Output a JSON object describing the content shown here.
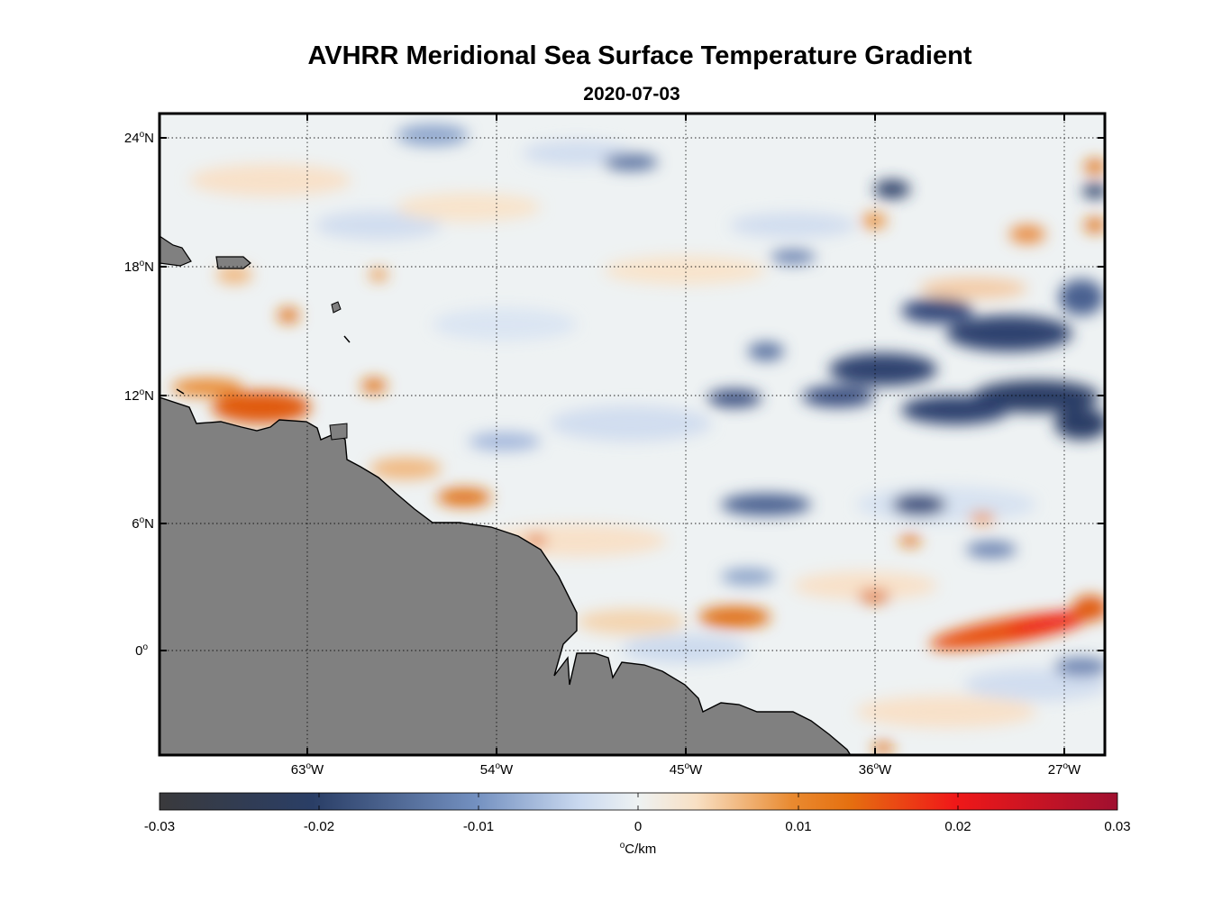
{
  "title": "AVHRR Meridional Sea Surface Temperature Gradient",
  "subtitle": "2020-07-03",
  "map": {
    "lat_labels": [
      {
        "deg": "24",
        "hemi": "N"
      },
      {
        "deg": "18",
        "hemi": "N"
      },
      {
        "deg": "12",
        "hemi": "N"
      },
      {
        "deg": "6",
        "hemi": "N"
      },
      {
        "deg": "0",
        "hemi": ""
      }
    ],
    "lon_labels": [
      {
        "deg": "63",
        "hemi": "W"
      },
      {
        "deg": "54",
        "hemi": "W"
      },
      {
        "deg": "45",
        "hemi": "W"
      },
      {
        "deg": "36",
        "hemi": "W"
      },
      {
        "deg": "27",
        "hemi": "W"
      }
    ],
    "land_color": "#808080",
    "ocean_background": "#eef2f3"
  },
  "colorbar": {
    "ticks": [
      "-0.03",
      "-0.02",
      "-0.01",
      "0",
      "0.01",
      "0.02",
      "0.03"
    ],
    "units_symbol": "o",
    "units_text": "C/km",
    "colors": [
      "#3a3a3c",
      "#2a3e66",
      "#7390c0",
      "#eef2f2",
      "#f2c48a",
      "#e57010",
      "#f01818",
      "#a01030"
    ]
  }
}
